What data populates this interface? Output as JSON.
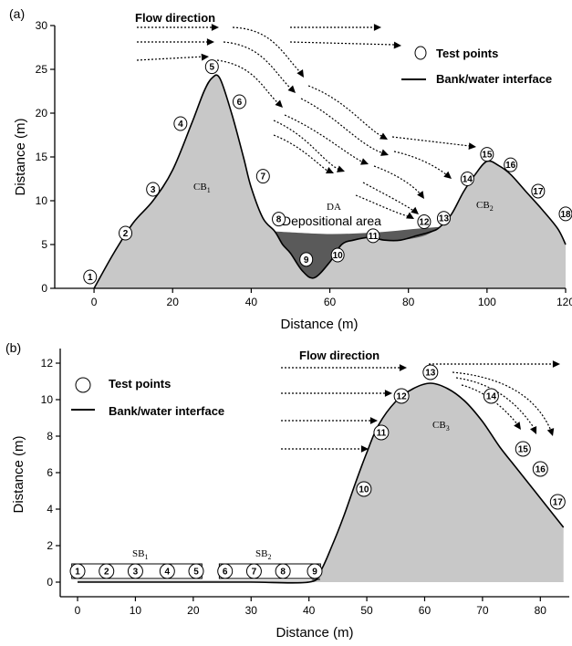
{
  "chart_data": [
    {
      "panel_label": "(a)",
      "type": "area",
      "xlabel": "Distance (m)",
      "ylabel": "Distance (m)",
      "xlim": [
        -10,
        120
      ],
      "ylim": [
        0,
        30
      ],
      "xticks": [
        0,
        20,
        40,
        60,
        80,
        100,
        120
      ],
      "yticks": [
        0,
        5,
        10,
        15,
        20,
        25,
        30
      ],
      "series": [
        {
          "name": "Bank/water interface",
          "x": [
            0,
            5,
            10,
            15,
            20,
            25,
            28,
            30,
            32,
            35,
            38,
            40,
            43,
            46,
            48,
            50,
            53,
            56,
            60,
            63,
            66,
            70,
            74,
            78,
            82,
            86,
            88,
            91,
            94,
            97,
            100,
            103,
            106,
            110,
            114,
            118,
            120
          ],
          "y": [
            0,
            4,
            7.5,
            10,
            13.5,
            19,
            22.5,
            24,
            24,
            20,
            15,
            11.5,
            8,
            6.5,
            5,
            4,
            2,
            1.2,
            3,
            5,
            5.5,
            5.8,
            5.5,
            5.5,
            6,
            6.5,
            7,
            8.5,
            11,
            13,
            14.5,
            14,
            13,
            11,
            9,
            6.8,
            5
          ]
        }
      ],
      "areas": [
        {
          "label": "CB1",
          "sub": "1"
        },
        {
          "label": "DA"
        },
        {
          "label": "CB2",
          "sub": "2"
        }
      ],
      "test_points": [
        {
          "id": "1",
          "x": -1,
          "y": 1.3
        },
        {
          "id": "2",
          "x": 8,
          "y": 6.3
        },
        {
          "id": "3",
          "x": 15,
          "y": 11.3
        },
        {
          "id": "4",
          "x": 22,
          "y": 18.8
        },
        {
          "id": "5",
          "x": 30,
          "y": 25.3
        },
        {
          "id": "6",
          "x": 37,
          "y": 21.3
        },
        {
          "id": "7",
          "x": 43,
          "y": 12.8
        },
        {
          "id": "8",
          "x": 47,
          "y": 7.9
        },
        {
          "id": "9",
          "x": 54,
          "y": 3.3
        },
        {
          "id": "10",
          "x": 62,
          "y": 3.8
        },
        {
          "id": "11",
          "x": 71,
          "y": 6
        },
        {
          "id": "12",
          "x": 84,
          "y": 7.6
        },
        {
          "id": "13",
          "x": 89,
          "y": 8
        },
        {
          "id": "14",
          "x": 95,
          "y": 12.5
        },
        {
          "id": "15",
          "x": 100,
          "y": 15.3
        },
        {
          "id": "16",
          "x": 106,
          "y": 14.1
        },
        {
          "id": "17",
          "x": 113,
          "y": 11.1
        },
        {
          "id": "18",
          "x": 120,
          "y": 8.5
        }
      ],
      "annotations": {
        "flow_direction": "Flow direction",
        "legend_points": "Test points",
        "legend_line": "Bank/water interface",
        "cb1": "CB",
        "cb1_sub": "1",
        "da": "DA",
        "depositional": "Depositional area",
        "cb2": "CB",
        "cb2_sub": "2"
      }
    },
    {
      "panel_label": "(b)",
      "type": "area",
      "xlabel": "Distance (m)",
      "ylabel": "Distance (m)",
      "xlim": [
        -3,
        85
      ],
      "ylim": [
        -0.8,
        12.8
      ],
      "xticks": [
        0,
        10,
        20,
        30,
        40,
        50,
        60,
        70,
        80
      ],
      "yticks": [
        0,
        2,
        4,
        6,
        8,
        10,
        12
      ],
      "series": [
        {
          "name": "Bank/water interface",
          "x": [
            0,
            10,
            20,
            30,
            40,
            42,
            44,
            46,
            48,
            50,
            52,
            55,
            58,
            61,
            64,
            67,
            70,
            73,
            76,
            79,
            82,
            84
          ],
          "y": [
            0,
            0,
            0,
            0,
            0,
            0.6,
            2.0,
            3.6,
            5.4,
            7.1,
            8.6,
            9.9,
            10.6,
            10.9,
            10.6,
            9.9,
            8.8,
            7.4,
            6.2,
            5.0,
            3.8,
            3.0
          ]
        }
      ],
      "areas": [
        {
          "label": "SB1",
          "sub": "1"
        },
        {
          "label": "SB2",
          "sub": "2"
        },
        {
          "label": "CB3",
          "sub": "3"
        }
      ],
      "test_points": [
        {
          "id": "1",
          "x": 0,
          "y": 0.6
        },
        {
          "id": "2",
          "x": 5,
          "y": 0.6
        },
        {
          "id": "3",
          "x": 10,
          "y": 0.6
        },
        {
          "id": "4",
          "x": 15.5,
          "y": 0.6
        },
        {
          "id": "5",
          "x": 20.5,
          "y": 0.6
        },
        {
          "id": "6",
          "x": 25.5,
          "y": 0.6
        },
        {
          "id": "7",
          "x": 30.5,
          "y": 0.6
        },
        {
          "id": "8",
          "x": 35.5,
          "y": 0.6
        },
        {
          "id": "9",
          "x": 41,
          "y": 0.6
        },
        {
          "id": "10",
          "x": 49.5,
          "y": 5.1
        },
        {
          "id": "11",
          "x": 52.5,
          "y": 8.2
        },
        {
          "id": "12",
          "x": 56,
          "y": 10.2
        },
        {
          "id": "13",
          "x": 61,
          "y": 11.5
        },
        {
          "id": "14",
          "x": 71.5,
          "y": 10.2
        },
        {
          "id": "15",
          "x": 77,
          "y": 7.3
        },
        {
          "id": "16",
          "x": 80,
          "y": 6.2
        },
        {
          "id": "17",
          "x": 83,
          "y": 4.4
        }
      ],
      "annotations": {
        "flow_direction": "Flow direction",
        "legend_points": "Test points",
        "legend_line": "Bank/water interface",
        "sb1": "SB",
        "sb1_sub": "1",
        "sb2": "SB",
        "sb2_sub": "2",
        "cb3": "CB",
        "cb3_sub": "3"
      }
    }
  ]
}
